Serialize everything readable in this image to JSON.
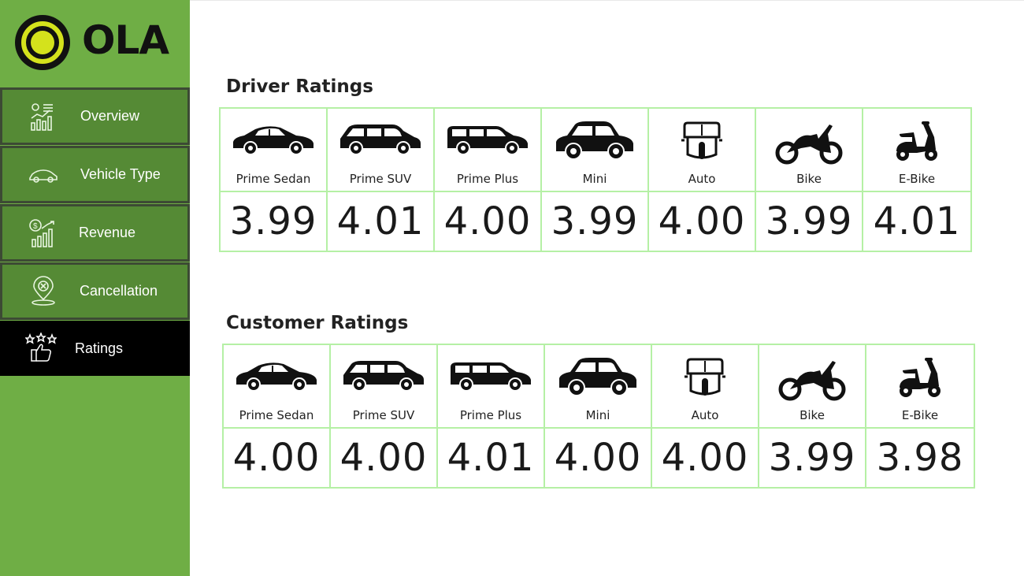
{
  "brand": {
    "name": "OLA",
    "accent": "#6fae45",
    "logo_yellow": "#d4e21c"
  },
  "sidebar": {
    "items": [
      {
        "label": "Overview",
        "icon": "chart-icon"
      },
      {
        "label": "Vehicle Type",
        "icon": "car-outline-icon"
      },
      {
        "label": "Revenue",
        "icon": "dollar-chart-icon"
      },
      {
        "label": "Cancellation",
        "icon": "cancel-pin-icon"
      },
      {
        "label": "Ratings",
        "icon": "star-thumb-icon",
        "active": true
      }
    ]
  },
  "driver": {
    "title": "Driver Ratings",
    "vehicles": [
      {
        "name": "Prime Sedan",
        "value": "3.99",
        "icon": "sedan-icon"
      },
      {
        "name": "Prime SUV",
        "value": "4.01",
        "icon": "suv-icon"
      },
      {
        "name": "Prime Plus",
        "value": "4.00",
        "icon": "wagon-icon"
      },
      {
        "name": "Mini",
        "value": "3.99",
        "icon": "mini-car-icon"
      },
      {
        "name": "Auto",
        "value": "4.00",
        "icon": "auto-rickshaw-icon"
      },
      {
        "name": "Bike",
        "value": "3.99",
        "icon": "motorbike-icon"
      },
      {
        "name": "E-Bike",
        "value": "4.01",
        "icon": "scooter-icon"
      }
    ]
  },
  "customer": {
    "title": "Customer Ratings",
    "vehicles": [
      {
        "name": "Prime Sedan",
        "value": "4.00",
        "icon": "sedan-icon"
      },
      {
        "name": "Prime SUV",
        "value": "4.00",
        "icon": "suv-icon"
      },
      {
        "name": "Prime Plus",
        "value": "4.01",
        "icon": "wagon-icon"
      },
      {
        "name": "Mini",
        "value": "4.00",
        "icon": "mini-car-icon"
      },
      {
        "name": "Auto",
        "value": "4.00",
        "icon": "auto-rickshaw-icon"
      },
      {
        "name": "Bike",
        "value": "3.99",
        "icon": "motorbike-icon"
      },
      {
        "name": "E-Bike",
        "value": "3.98",
        "icon": "scooter-icon"
      }
    ]
  }
}
